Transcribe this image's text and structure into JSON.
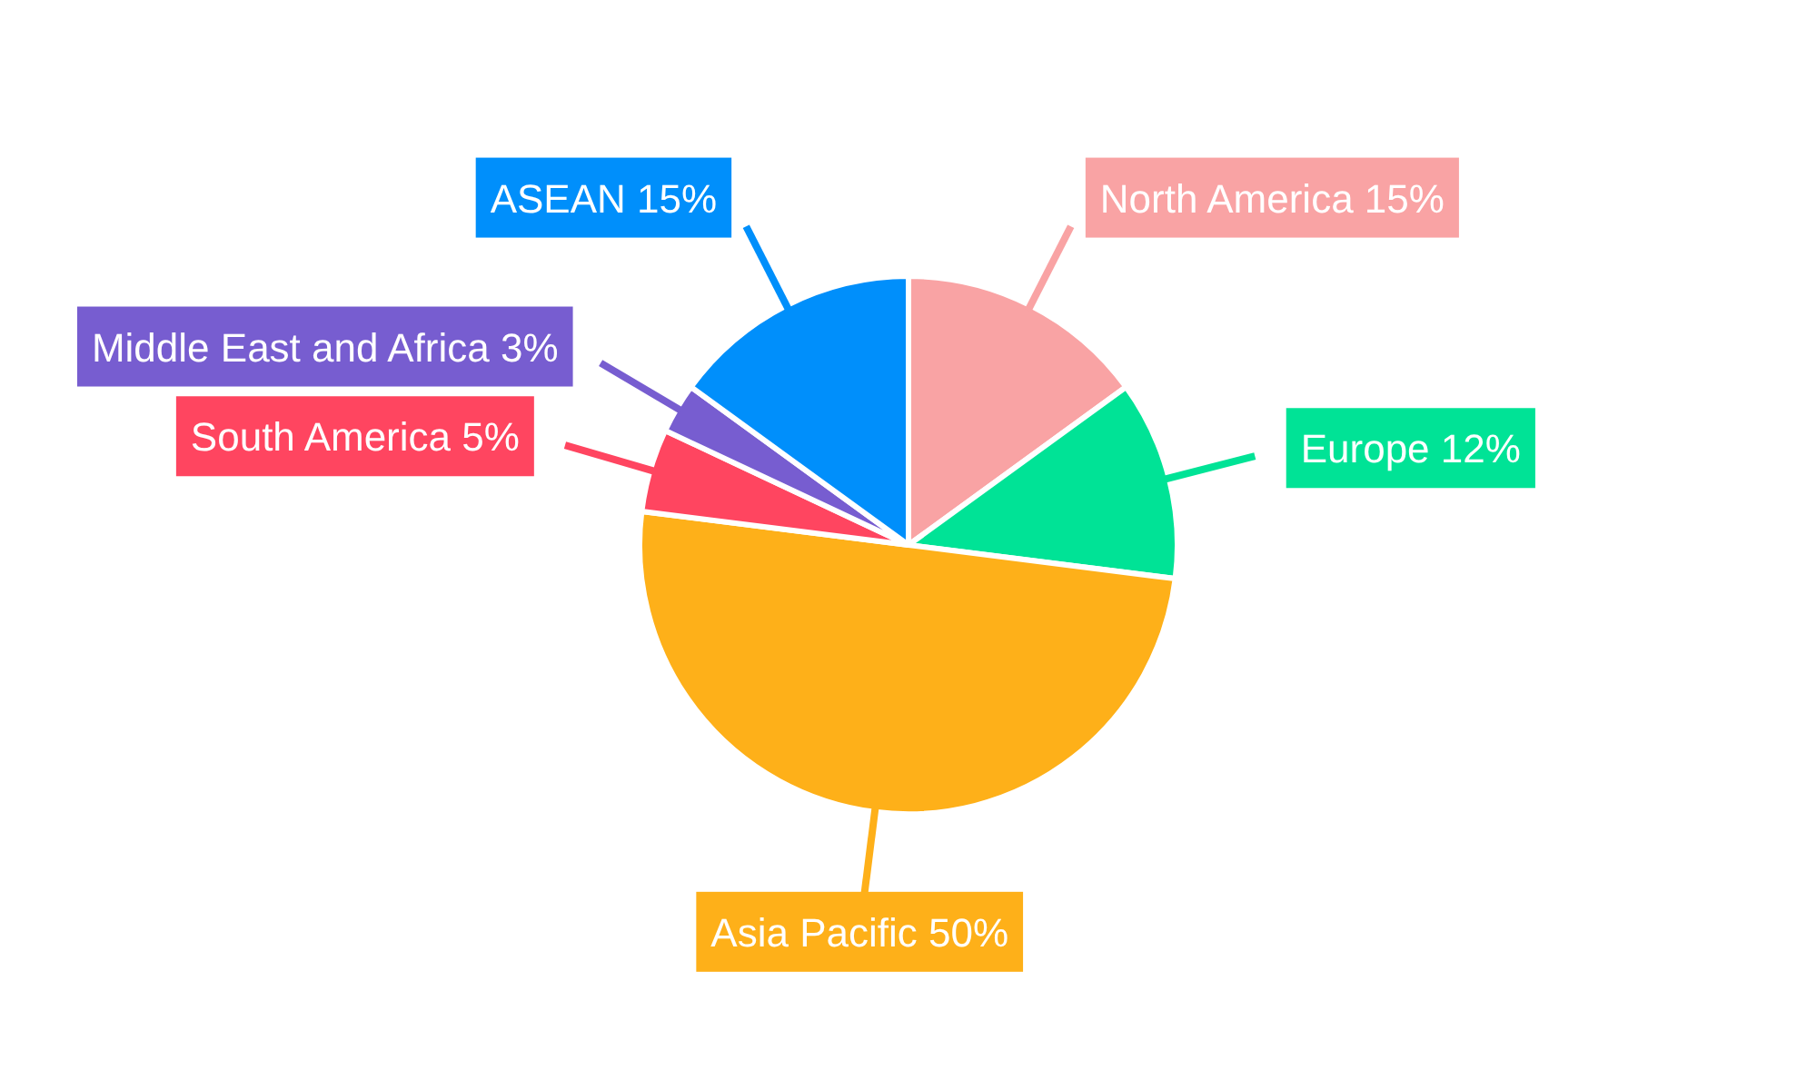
{
  "chart_data": {
    "type": "pie",
    "categories": [
      "North America",
      "Europe",
      "Asia Pacific",
      "South America",
      "Middle East and Africa",
      "ASEAN"
    ],
    "values": [
      15,
      12,
      50,
      5,
      3,
      15
    ],
    "value_labels": [
      "15%",
      "12%",
      "50%",
      "5%",
      "3%",
      "15%"
    ],
    "colors": [
      "#f9a3a4",
      "#00e396",
      "#feb019",
      "#ff4560",
      "#775dd0",
      "#008ffb"
    ]
  }
}
